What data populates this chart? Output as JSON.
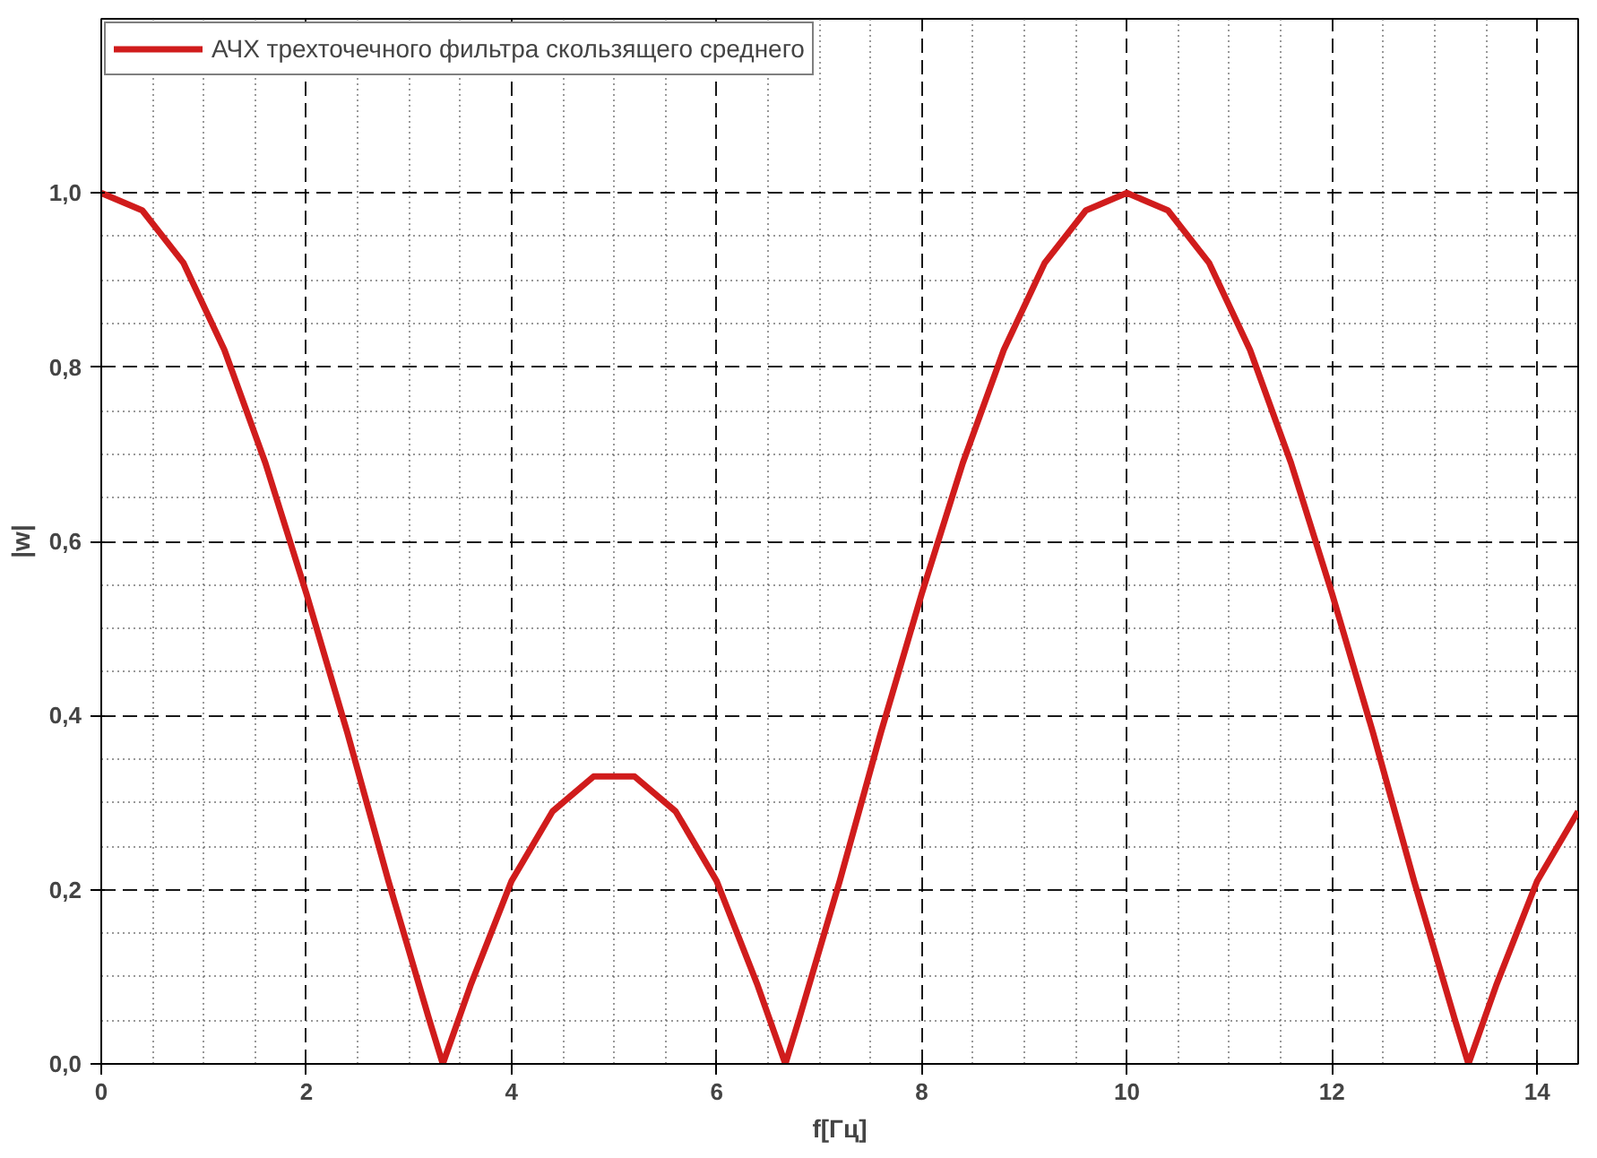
{
  "chart_data": {
    "type": "line",
    "xlabel": "f[Гц]",
    "ylabel": "|w|",
    "x": [
      0,
      0.4,
      0.8,
      1.2,
      1.6,
      2.0,
      2.4,
      2.8,
      3.2,
      3.33,
      3.6,
      4.0,
      4.4,
      4.8,
      5.0,
      5.2,
      5.6,
      6.0,
      6.4,
      6.67,
      6.8,
      7.2,
      7.6,
      8.0,
      8.4,
      8.8,
      9.2,
      9.6,
      10.0,
      10.4,
      10.8,
      11.2,
      11.6,
      12.0,
      12.4,
      12.8,
      13.2,
      13.33,
      13.6,
      14.0,
      14.4
    ],
    "series": [
      {
        "name": "АЧХ трехточечного фильтра скользящего среднего",
        "color": "#d01c1c",
        "values": [
          1.0,
          0.98,
          0.92,
          0.82,
          0.69,
          0.54,
          0.38,
          0.21,
          0.05,
          0.0,
          0.09,
          0.21,
          0.29,
          0.33,
          0.33,
          0.33,
          0.29,
          0.21,
          0.09,
          0.0,
          0.05,
          0.21,
          0.38,
          0.54,
          0.69,
          0.82,
          0.92,
          0.98,
          1.0,
          0.98,
          0.92,
          0.82,
          0.69,
          0.54,
          0.38,
          0.21,
          0.05,
          0.0,
          0.09,
          0.21,
          0.29
        ]
      }
    ],
    "xlim": [
      0,
      14.4
    ],
    "ylim": [
      0,
      1.2
    ],
    "xticks": [
      0,
      2,
      4,
      6,
      8,
      10,
      12,
      14
    ],
    "yticks": [
      {
        "value": 0,
        "label": "0,0"
      },
      {
        "value": 0.2,
        "label": "0,2"
      },
      {
        "value": 0.4,
        "label": "0,4"
      },
      {
        "value": 0.6,
        "label": "0,6"
      },
      {
        "value": 0.8,
        "label": "0,8"
      },
      {
        "value": 1.0,
        "label": "1,0"
      }
    ],
    "grid": true,
    "legend": "top left",
    "marker": "none",
    "line_style": "solid"
  }
}
